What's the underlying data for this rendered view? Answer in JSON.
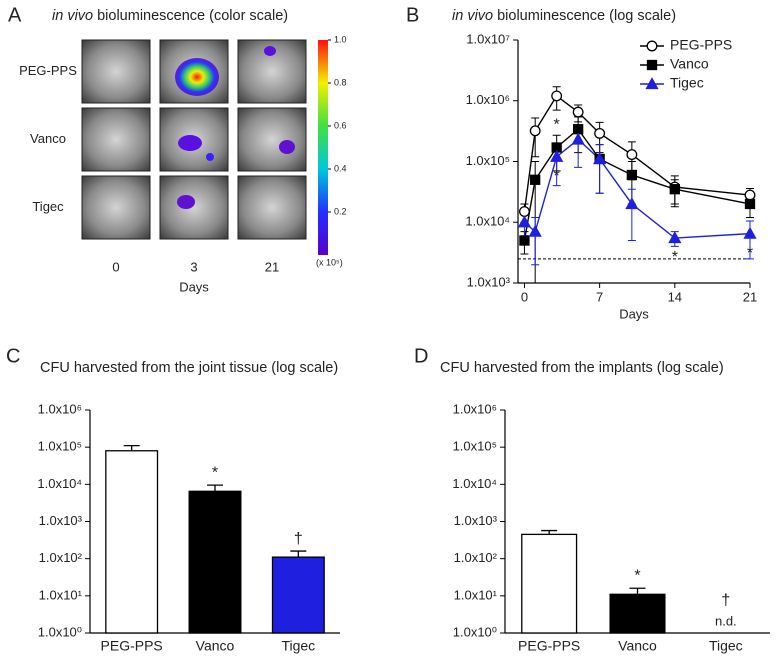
{
  "chart_data": [
    {
      "type": "image",
      "panel_label": "A",
      "title_italic": "in vivo",
      "title": "bioluminescence (color scale)",
      "rows": [
        "PEG-PPS",
        "Vanco",
        "Tigec"
      ],
      "columns": [
        "0",
        "3",
        "21"
      ],
      "xlabel": "Days",
      "colorbar_lim": [
        0,
        1
      ],
      "colorbar_ticks": [
        0.2,
        0.4,
        0.6,
        0.8,
        {
          "value": 1,
          "label": "1.0"
        }
      ],
      "colorbar_unit": "(x 10⁵)"
    },
    {
      "type": "line",
      "panel_label": "B",
      "title_italic": "in vivo",
      "title": "bioluminescence (log scale)",
      "xlabel": "Days",
      "log_y": true,
      "x": [
        0,
        1,
        3,
        5,
        7,
        10,
        14,
        21
      ],
      "xlim": [
        -0.6,
        21
      ],
      "xticks": [
        0,
        7,
        14,
        21
      ],
      "ylim": [
        1000,
        10000000
      ],
      "yticks": [
        {
          "value": 1000,
          "label": "1.0x10³"
        },
        {
          "value": 10000,
          "label": "1.0x10⁴"
        },
        {
          "value": 100000,
          "label": "1.0x10⁵"
        },
        {
          "value": 1000000,
          "label": "1.0x10⁶"
        },
        {
          "value": 10000000,
          "label": "1.0x10⁷"
        }
      ],
      "reference_line": 2500,
      "legend": "top-right",
      "series": [
        {
          "name": "PEG-PPS",
          "color": "#000000",
          "marker": "circle",
          "filled": false,
          "label_position": "above",
          "values": [
            15000,
            320000,
            1200000,
            650000,
            290000,
            130000,
            38000,
            28000
          ],
          "errors": [
            5000,
            200000,
            500000,
            200000,
            150000,
            80000,
            20000,
            8000
          ],
          "point_labels": [
            null,
            null,
            null,
            null,
            null,
            null,
            null,
            null
          ]
        },
        {
          "name": "Vanco",
          "color": "#000000",
          "marker": "square",
          "filled": true,
          "label_position": "above",
          "values": [
            5000,
            50000,
            170000,
            340000,
            110000,
            60000,
            35000,
            20000
          ],
          "errors": [
            2000,
            50000,
            100000,
            200000,
            80000,
            40000,
            15000,
            8000
          ],
          "point_labels": [
            null,
            null,
            "*",
            null,
            null,
            null,
            null,
            null
          ]
        },
        {
          "name": "Tigec",
          "color": "#1f1fe0",
          "marker": "triangle",
          "filled": true,
          "label_position": "below",
          "values": [
            10000,
            7000,
            120000,
            230000,
            110000,
            20000,
            5500,
            6500
          ],
          "errors": [
            4000,
            5000,
            80000,
            150000,
            80000,
            15000,
            1500,
            4000
          ],
          "point_labels": [
            null,
            null,
            "*",
            null,
            null,
            null,
            "*",
            "*"
          ]
        }
      ]
    },
    {
      "type": "bar",
      "panel_label": "C",
      "title": "CFU harvested from the joint tissue (log scale)",
      "log_y": true,
      "categories": [
        "PEG-PPS",
        "Vanco",
        "Tigec"
      ],
      "values": [
        80000,
        6500,
        110
      ],
      "errors": [
        30000,
        3000,
        50
      ],
      "colors": [
        "#ffffff",
        "#000000",
        "#1f1fe0"
      ],
      "bar_labels": [
        null,
        "*",
        "†"
      ],
      "notes": [
        null,
        null,
        null
      ],
      "ylim": [
        1,
        1000000
      ],
      "yticks": [
        {
          "value": 1,
          "label": "1.0x10⁰"
        },
        {
          "value": 10,
          "label": "1.0x10¹"
        },
        {
          "value": 100,
          "label": "1.0x10²"
        },
        {
          "value": 1000,
          "label": "1.0x10³"
        },
        {
          "value": 10000,
          "label": "1.0x10⁴"
        },
        {
          "value": 100000,
          "label": "1.0x10⁵"
        },
        {
          "value": 1000000,
          "label": "1.0x10⁶"
        }
      ]
    },
    {
      "type": "bar",
      "panel_label": "D",
      "title": "CFU harvested from the implants (log scale)",
      "log_y": true,
      "categories": [
        "PEG-PPS",
        "Vanco",
        "Tigec"
      ],
      "values": [
        450,
        11,
        null
      ],
      "errors": [
        120,
        5,
        null
      ],
      "colors": [
        "#ffffff",
        "#000000",
        "#1f1fe0"
      ],
      "bar_labels": [
        null,
        "*",
        "†"
      ],
      "notes": [
        null,
        null,
        "n.d."
      ],
      "ylim": [
        1,
        1000000
      ],
      "yticks": [
        {
          "value": 1,
          "label": "1.0x10⁰"
        },
        {
          "value": 10,
          "label": "1.0x10¹"
        },
        {
          "value": 100,
          "label": "1.0x10²"
        },
        {
          "value": 1000,
          "label": "1.0x10³"
        },
        {
          "value": 10000,
          "label": "1.0x10⁴"
        },
        {
          "value": 100000,
          "label": "1.0x10⁵"
        },
        {
          "value": 1000000,
          "label": "1.0x10⁶"
        }
      ]
    }
  ]
}
